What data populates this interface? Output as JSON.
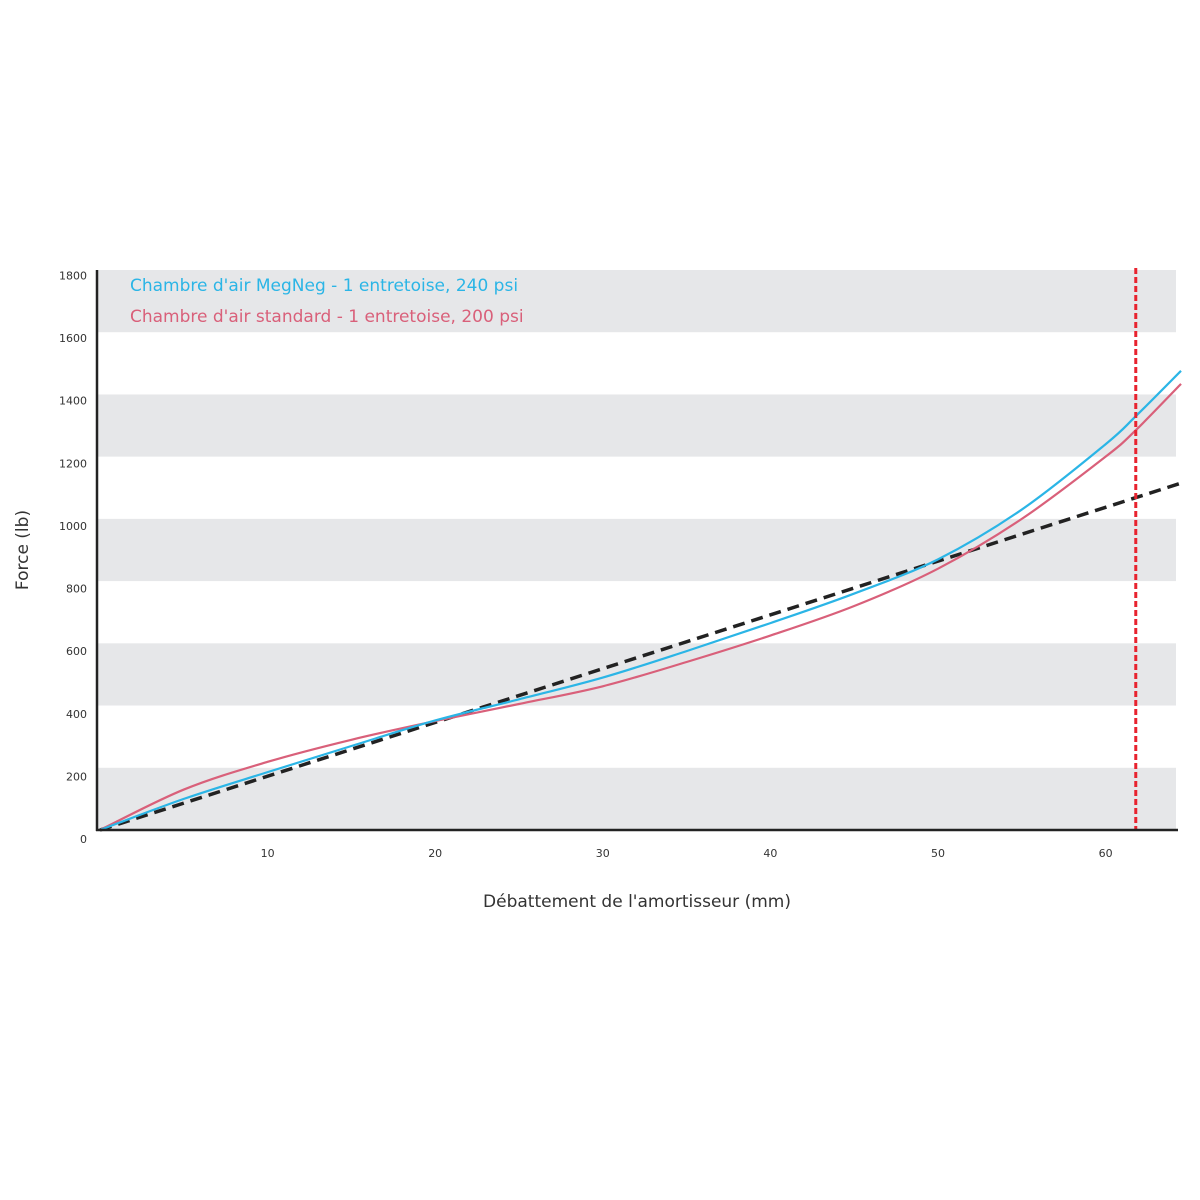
{
  "chart_data": {
    "type": "line",
    "title": "",
    "xlabel": "Débattement de l'amortisseur (mm)",
    "ylabel": "Force (lb)",
    "xlim": [
      0,
      64.3
    ],
    "ylim": [
      0,
      1800
    ],
    "x_ticks": [
      "10",
      "20",
      "30",
      "40",
      "50",
      "60"
    ],
    "y_ticks": [
      "0",
      "200",
      "400",
      "600",
      "800",
      "1000",
      "1200",
      "1400",
      "1600",
      "1800"
    ],
    "grid": "alternating horizontal bands",
    "legend_position": "top-left",
    "series": [
      {
        "name": "Chambre d'air MegNeg - 1 entretoise, 240 psi",
        "color": "#2bb5e6",
        "style": "solid",
        "x": [
          0,
          5,
          10,
          15,
          20,
          25,
          30,
          35,
          40,
          45,
          50,
          55,
          60,
          61.8,
          64.5
        ],
        "y": [
          0,
          100,
          186,
          270,
          352,
          420,
          490,
          575,
          665,
          760,
          870,
          1030,
          1240,
          1330,
          1476
        ]
      },
      {
        "name": "Chambre d'air standard - 1 entretoise, 200 psi",
        "color": "#d9607a",
        "style": "solid",
        "x": [
          0,
          5,
          10,
          15,
          20,
          25,
          30,
          35,
          40,
          45,
          50,
          55,
          60,
          61.8,
          64.5
        ],
        "y": [
          0,
          130,
          219,
          290,
          350,
          405,
          462,
          540,
          625,
          720,
          840,
          1000,
          1200,
          1285,
          1434
        ]
      },
      {
        "color": "#222222",
        "style": "dashed",
        "x": [
          0,
          64.5
        ],
        "y": [
          0,
          1115
        ]
      }
    ],
    "vertical_marker": {
      "x": 61.8,
      "color": "#e8232f",
      "style": "dashed"
    }
  }
}
